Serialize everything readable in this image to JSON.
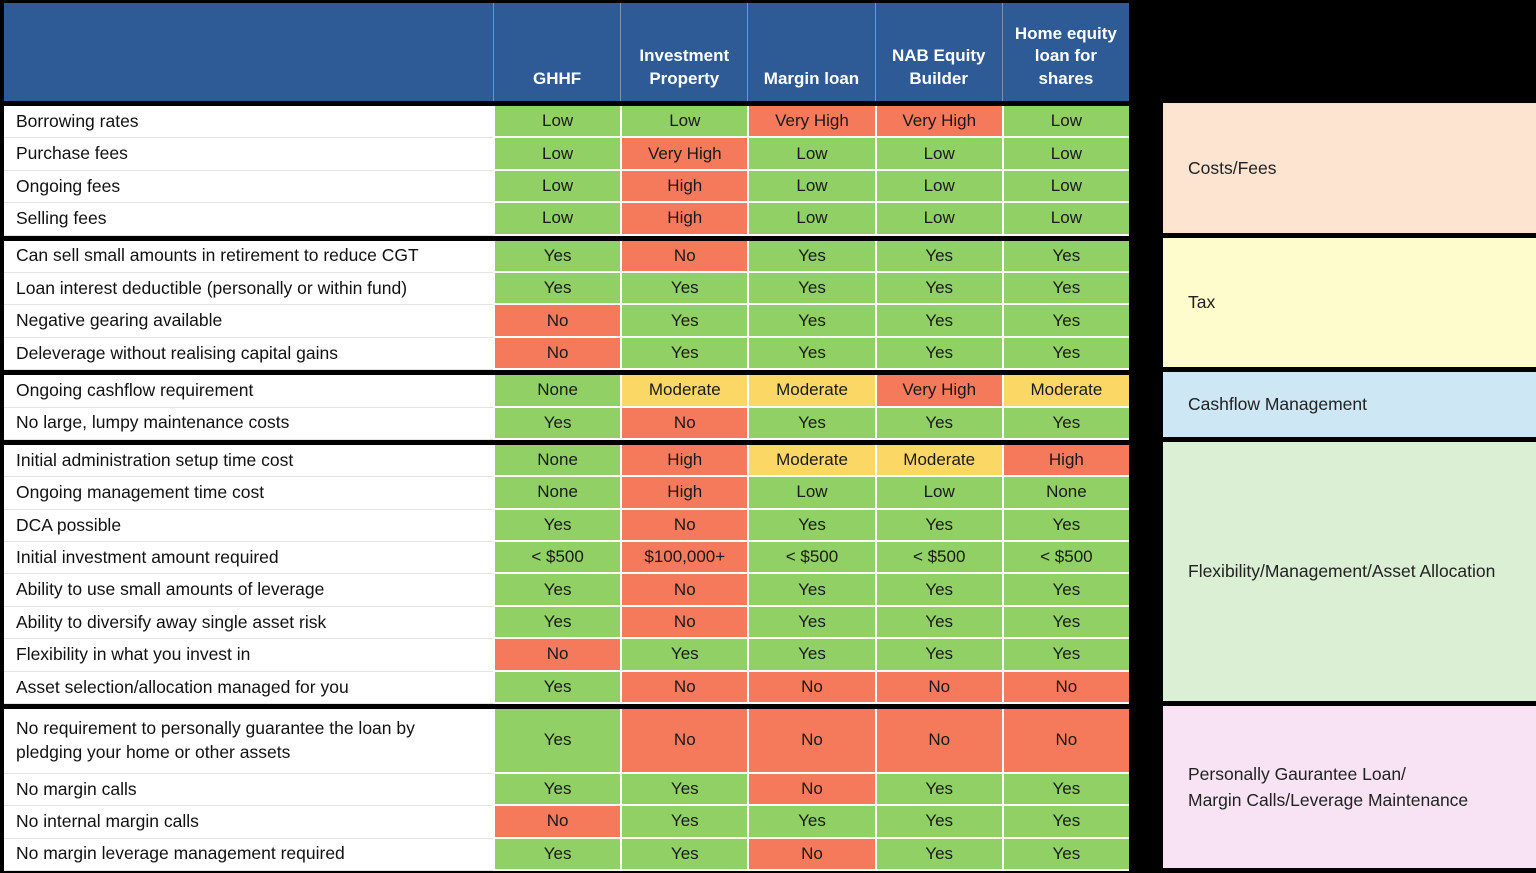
{
  "palette": {
    "header_bg": "#2E5A96",
    "header_text": "#FFFFFF",
    "good": "#90D065",
    "bad": "#F5795B",
    "warn": "#FBD765",
    "row_bg": "#FFFFFF",
    "divider": "#000000"
  },
  "columns": [
    "GHHF",
    "Investment Property",
    "Margin loan",
    "NAB Equity Builder",
    "Home equity loan for shares"
  ],
  "groups": [
    {
      "category": "Costs/Fees",
      "category_color": "#FCE4D1",
      "rows": [
        {
          "label": "Borrowing rates",
          "cells": [
            {
              "text": "Low",
              "status": "good"
            },
            {
              "text": "Low",
              "status": "good"
            },
            {
              "text": "Very High",
              "status": "bad"
            },
            {
              "text": "Very High",
              "status": "bad"
            },
            {
              "text": "Low",
              "status": "good"
            }
          ]
        },
        {
          "label": "Purchase fees",
          "cells": [
            {
              "text": "Low",
              "status": "good"
            },
            {
              "text": "Very High",
              "status": "bad"
            },
            {
              "text": "Low",
              "status": "good"
            },
            {
              "text": "Low",
              "status": "good"
            },
            {
              "text": "Low",
              "status": "good"
            }
          ]
        },
        {
          "label": "Ongoing fees",
          "cells": [
            {
              "text": "Low",
              "status": "good"
            },
            {
              "text": "High",
              "status": "bad"
            },
            {
              "text": "Low",
              "status": "good"
            },
            {
              "text": "Low",
              "status": "good"
            },
            {
              "text": "Low",
              "status": "good"
            }
          ]
        },
        {
          "label": "Selling fees",
          "cells": [
            {
              "text": "Low",
              "status": "good"
            },
            {
              "text": "High",
              "status": "bad"
            },
            {
              "text": "Low",
              "status": "good"
            },
            {
              "text": "Low",
              "status": "good"
            },
            {
              "text": "Low",
              "status": "good"
            }
          ]
        }
      ]
    },
    {
      "category": "Tax",
      "category_color": "#FEFBCC",
      "rows": [
        {
          "label": "Can sell small amounts in retirement to reduce CGT",
          "cells": [
            {
              "text": "Yes",
              "status": "good"
            },
            {
              "text": "No",
              "status": "bad"
            },
            {
              "text": "Yes",
              "status": "good"
            },
            {
              "text": "Yes",
              "status": "good"
            },
            {
              "text": "Yes",
              "status": "good"
            }
          ]
        },
        {
          "label": "Loan interest deductible (personally or within fund)",
          "cells": [
            {
              "text": "Yes",
              "status": "good"
            },
            {
              "text": "Yes",
              "status": "good"
            },
            {
              "text": "Yes",
              "status": "good"
            },
            {
              "text": "Yes",
              "status": "good"
            },
            {
              "text": "Yes",
              "status": "good"
            }
          ]
        },
        {
          "label": "Negative gearing available",
          "cells": [
            {
              "text": "No",
              "status": "bad"
            },
            {
              "text": "Yes",
              "status": "good"
            },
            {
              "text": "Yes",
              "status": "good"
            },
            {
              "text": "Yes",
              "status": "good"
            },
            {
              "text": "Yes",
              "status": "good"
            }
          ]
        },
        {
          "label": "Deleverage without realising capital gains",
          "cells": [
            {
              "text": "No",
              "status": "bad"
            },
            {
              "text": "Yes",
              "status": "good"
            },
            {
              "text": "Yes",
              "status": "good"
            },
            {
              "text": "Yes",
              "status": "good"
            },
            {
              "text": "Yes",
              "status": "good"
            }
          ]
        }
      ]
    },
    {
      "category": "Cashflow Management",
      "category_color": "#CEE7F5",
      "rows": [
        {
          "label": "Ongoing cashflow requirement",
          "cells": [
            {
              "text": "None",
              "status": "good"
            },
            {
              "text": "Moderate",
              "status": "warn"
            },
            {
              "text": "Moderate",
              "status": "warn"
            },
            {
              "text": "Very High",
              "status": "bad"
            },
            {
              "text": "Moderate",
              "status": "warn"
            }
          ]
        },
        {
          "label": "No large, lumpy maintenance costs",
          "cells": [
            {
              "text": "Yes",
              "status": "good"
            },
            {
              "text": "No",
              "status": "bad"
            },
            {
              "text": "Yes",
              "status": "good"
            },
            {
              "text": "Yes",
              "status": "good"
            },
            {
              "text": "Yes",
              "status": "good"
            }
          ]
        }
      ]
    },
    {
      "category": "Flexibility/Management/Asset Allocation",
      "category_color": "#DAEFD4",
      "rows": [
        {
          "label": "Initial administration setup time cost",
          "cells": [
            {
              "text": "None",
              "status": "good"
            },
            {
              "text": "High",
              "status": "bad"
            },
            {
              "text": "Moderate",
              "status": "warn"
            },
            {
              "text": "Moderate",
              "status": "warn"
            },
            {
              "text": "High",
              "status": "bad"
            }
          ]
        },
        {
          "label": "Ongoing management time cost",
          "cells": [
            {
              "text": "None",
              "status": "good"
            },
            {
              "text": "High",
              "status": "bad"
            },
            {
              "text": "Low",
              "status": "good"
            },
            {
              "text": "Low",
              "status": "good"
            },
            {
              "text": "None",
              "status": "good"
            }
          ]
        },
        {
          "label": "DCA possible",
          "cells": [
            {
              "text": "Yes",
              "status": "good"
            },
            {
              "text": "No",
              "status": "bad"
            },
            {
              "text": "Yes",
              "status": "good"
            },
            {
              "text": "Yes",
              "status": "good"
            },
            {
              "text": "Yes",
              "status": "good"
            }
          ]
        },
        {
          "label": "Initial investment amount required",
          "cells": [
            {
              "text": "< $500",
              "status": "good"
            },
            {
              "text": "$100,000+",
              "status": "bad"
            },
            {
              "text": "< $500",
              "status": "good"
            },
            {
              "text": "< $500",
              "status": "good"
            },
            {
              "text": "< $500",
              "status": "good"
            }
          ]
        },
        {
          "label": "Ability to use small amounts of leverage",
          "cells": [
            {
              "text": "Yes",
              "status": "good"
            },
            {
              "text": "No",
              "status": "bad"
            },
            {
              "text": "Yes",
              "status": "good"
            },
            {
              "text": "Yes",
              "status": "good"
            },
            {
              "text": "Yes",
              "status": "good"
            }
          ]
        },
        {
          "label": "Ability to diversify away single asset risk",
          "cells": [
            {
              "text": "Yes",
              "status": "good"
            },
            {
              "text": "No",
              "status": "bad"
            },
            {
              "text": "Yes",
              "status": "good"
            },
            {
              "text": "Yes",
              "status": "good"
            },
            {
              "text": "Yes",
              "status": "good"
            }
          ]
        },
        {
          "label": "Flexibility in what you invest in",
          "cells": [
            {
              "text": "No",
              "status": "bad"
            },
            {
              "text": "Yes",
              "status": "good"
            },
            {
              "text": "Yes",
              "status": "good"
            },
            {
              "text": "Yes",
              "status": "good"
            },
            {
              "text": "Yes",
              "status": "good"
            }
          ]
        },
        {
          "label": "Asset selection/allocation managed for you",
          "cells": [
            {
              "text": "Yes",
              "status": "good"
            },
            {
              "text": "No",
              "status": "bad"
            },
            {
              "text": "No",
              "status": "bad"
            },
            {
              "text": "No",
              "status": "bad"
            },
            {
              "text": "No",
              "status": "bad"
            }
          ]
        }
      ]
    },
    {
      "category": "Personally Gaurantee Loan/\nMargin Calls/Leverage Maintenance",
      "category_color": "#F7E3F3",
      "rows": [
        {
          "label": "No requirement to personally guarantee the loan by\npledging your home or other assets",
          "tall": true,
          "cells": [
            {
              "text": "Yes",
              "status": "good"
            },
            {
              "text": "No",
              "status": "bad"
            },
            {
              "text": "No",
              "status": "bad"
            },
            {
              "text": "No",
              "status": "bad"
            },
            {
              "text": "No",
              "status": "bad"
            }
          ]
        },
        {
          "label": "No margin calls",
          "cells": [
            {
              "text": "Yes",
              "status": "good"
            },
            {
              "text": "Yes",
              "status": "good"
            },
            {
              "text": "No",
              "status": "bad"
            },
            {
              "text": "Yes",
              "status": "good"
            },
            {
              "text": "Yes",
              "status": "good"
            }
          ]
        },
        {
          "label": "No internal margin calls",
          "cells": [
            {
              "text": "No",
              "status": "bad"
            },
            {
              "text": "Yes",
              "status": "good"
            },
            {
              "text": "Yes",
              "status": "good"
            },
            {
              "text": "Yes",
              "status": "good"
            },
            {
              "text": "Yes",
              "status": "good"
            }
          ]
        },
        {
          "label": "No margin leverage management required",
          "cells": [
            {
              "text": "Yes",
              "status": "good"
            },
            {
              "text": "Yes",
              "status": "good"
            },
            {
              "text": "No",
              "status": "bad"
            },
            {
              "text": "Yes",
              "status": "good"
            },
            {
              "text": "Yes",
              "status": "good"
            }
          ]
        }
      ]
    }
  ]
}
